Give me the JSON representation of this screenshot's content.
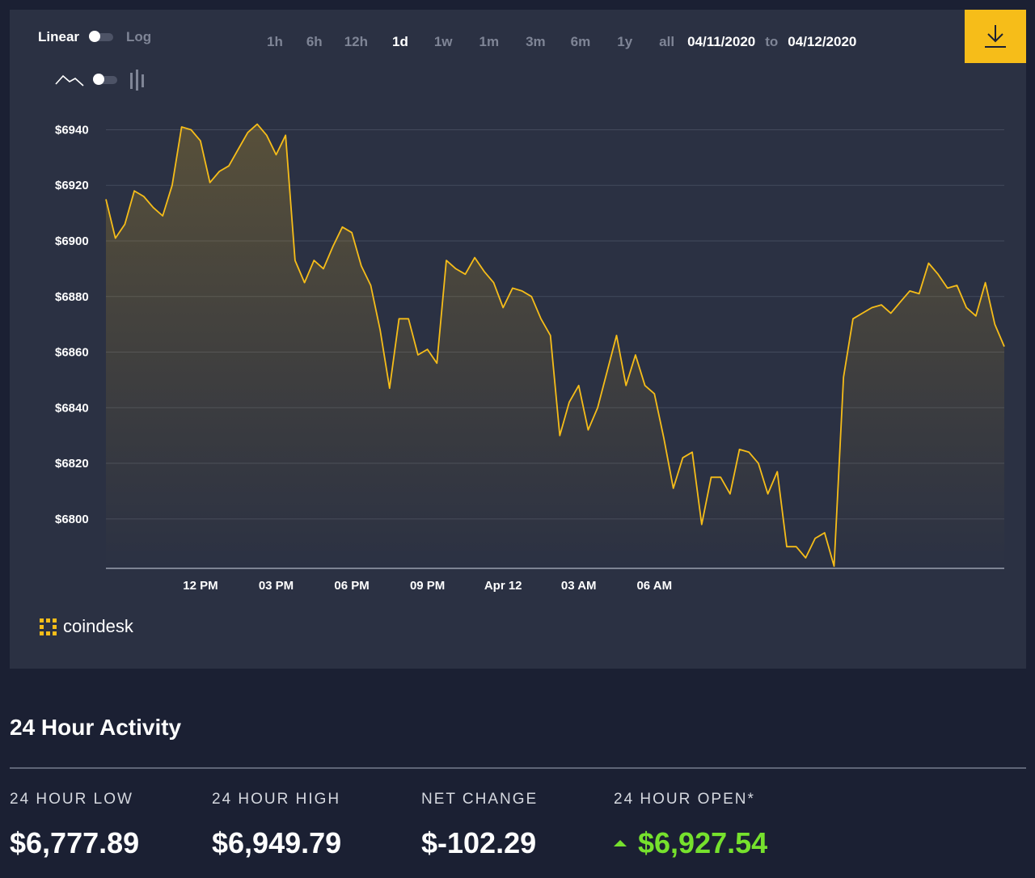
{
  "controls": {
    "scale_linear": "Linear",
    "scale_log": "Log",
    "ranges": [
      "1h",
      "6h",
      "12h",
      "1d",
      "1w",
      "1m",
      "3m",
      "6m",
      "1y",
      "all"
    ],
    "active_range": "1d",
    "date_from": "04/11/2020",
    "date_to_word": "to",
    "date_to": "04/12/2020"
  },
  "brand": "coindesk",
  "colors": {
    "line": "#f6bd19",
    "accent": "#f6bd19",
    "up": "#76e12d"
  },
  "icons": [
    "line-chart-icon",
    "bar-chart-icon",
    "download-icon",
    "coindesk-logo-icon",
    "up-arrow-icon"
  ],
  "chart_data": {
    "type": "area",
    "x_tick_labels": [
      "12 PM",
      "03 PM",
      "06 PM",
      "09 PM",
      "Apr 12",
      "03 AM",
      "06 AM"
    ],
    "y_tick_values": [
      6800,
      6820,
      6840,
      6860,
      6880,
      6900,
      6920,
      6940
    ],
    "y_tick_prefix": "$",
    "ylim": [
      6782.5,
      6957
    ],
    "grid": true,
    "series": [
      {
        "values": [
          6915,
          6901,
          6906,
          6918,
          6916,
          6912,
          6909,
          6920,
          6941,
          6940,
          6936,
          6921,
          6925,
          6927,
          6933,
          6939,
          6942,
          6938,
          6931,
          6938,
          6893,
          6885,
          6893,
          6890,
          6898,
          6905,
          6903,
          6891,
          6884,
          6868,
          6847,
          6872,
          6872,
          6859,
          6861,
          6856,
          6893,
          6890,
          6888,
          6894,
          6889,
          6885,
          6876,
          6883,
          6882,
          6880,
          6872,
          6866,
          6830,
          6842,
          6848,
          6832,
          6840,
          6853,
          6866,
          6848,
          6859,
          6848,
          6845,
          6829,
          6811,
          6822,
          6824,
          6798,
          6815,
          6815,
          6809,
          6825,
          6824,
          6820,
          6809,
          6817,
          6790,
          6790,
          6786,
          6793,
          6795,
          6783,
          6851,
          6872,
          6874,
          6876,
          6877,
          6874,
          6878,
          6882,
          6881,
          6892,
          6888,
          6883,
          6884,
          6876,
          6873,
          6885,
          6870,
          6862
        ]
      }
    ]
  },
  "activity": {
    "title": "24 Hour Activity",
    "stats": [
      {
        "label": "24 HOUR LOW",
        "value": "$6,777.89"
      },
      {
        "label": "24 HOUR HIGH",
        "value": "$6,949.79"
      },
      {
        "label": "NET CHANGE",
        "value": "$-102.29"
      },
      {
        "label": "24 HOUR OPEN*",
        "value": "$6,927.54"
      }
    ]
  }
}
